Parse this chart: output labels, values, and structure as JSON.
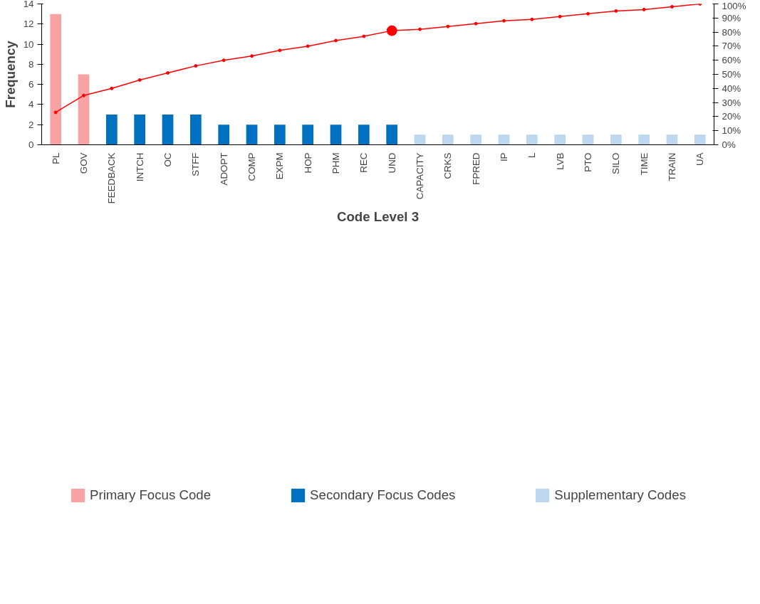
{
  "chart_data": {
    "type": "bar",
    "xlabel": "Code Level 3",
    "ylabel": "Frequency",
    "categories": [
      "PL",
      "GOV",
      "FEEDBACK",
      "INTCH",
      "OC",
      "STFF",
      "ADOPT",
      "COMP",
      "EXPM",
      "HOP",
      "PHM",
      "REC",
      "UND",
      "CAPACITY",
      "CRKS",
      "FPRED",
      "IP",
      "L",
      "LVB",
      "PTO",
      "SILO",
      "TIME",
      "TRAIN",
      "UA"
    ],
    "ylim": [
      0,
      14
    ],
    "yticks": [
      0,
      2,
      4,
      6,
      8,
      10,
      12,
      14
    ],
    "y2lim": [
      0,
      100
    ],
    "y2ticks": [
      {
        "value": 0,
        "label": "0%"
      },
      {
        "value": 10,
        "label": "10%"
      },
      {
        "value": 20,
        "label": "20%"
      },
      {
        "value": 30,
        "label": "30%"
      },
      {
        "value": 40,
        "label": "40%"
      },
      {
        "value": 50,
        "label": "50%"
      },
      {
        "value": 60,
        "label": "60%"
      },
      {
        "value": 70,
        "label": "70%"
      },
      {
        "value": 80,
        "label": "80%"
      },
      {
        "value": 90,
        "label": "90%"
      },
      {
        "value": 100,
        "label": "100%"
      }
    ],
    "grid": false,
    "legend": "bottom",
    "series": [
      {
        "name": "Primary Focus Code",
        "color": "#f8a3a3",
        "values": [
          13,
          7,
          null,
          null,
          null,
          null,
          null,
          null,
          null,
          null,
          null,
          null,
          null,
          null,
          null,
          null,
          null,
          null,
          null,
          null,
          null,
          null,
          null,
          null
        ]
      },
      {
        "name": "Secondary Focus Codes",
        "color": "#0070c0",
        "values": [
          null,
          null,
          3,
          3,
          3,
          3,
          2,
          2,
          2,
          2,
          2,
          2,
          2,
          null,
          null,
          null,
          null,
          null,
          null,
          null,
          null,
          null,
          null,
          null
        ]
      },
      {
        "name": "Supplementary Codes",
        "color": "#bdd7ee",
        "values": [
          null,
          null,
          null,
          null,
          null,
          null,
          null,
          null,
          null,
          null,
          null,
          null,
          null,
          1,
          1,
          1,
          1,
          1,
          1,
          1,
          1,
          1,
          1,
          1
        ]
      },
      {
        "type": "line",
        "axis": "y2",
        "color": "#ff0000",
        "marker": "circle",
        "values": [
          23,
          35,
          40,
          46,
          51,
          56,
          60,
          63,
          67,
          70,
          74,
          77,
          81,
          82,
          84,
          86,
          88,
          89,
          91,
          93,
          95,
          96,
          98,
          100
        ]
      },
      {
        "type": "scatter",
        "axis": "y2",
        "color": "#ff0000",
        "marker": "circle",
        "values": [
          null,
          null,
          null,
          null,
          null,
          null,
          null,
          null,
          null,
          null,
          null,
          null,
          81,
          null,
          null,
          null,
          null,
          null,
          null,
          null,
          null,
          null,
          null,
          null
        ]
      }
    ]
  }
}
